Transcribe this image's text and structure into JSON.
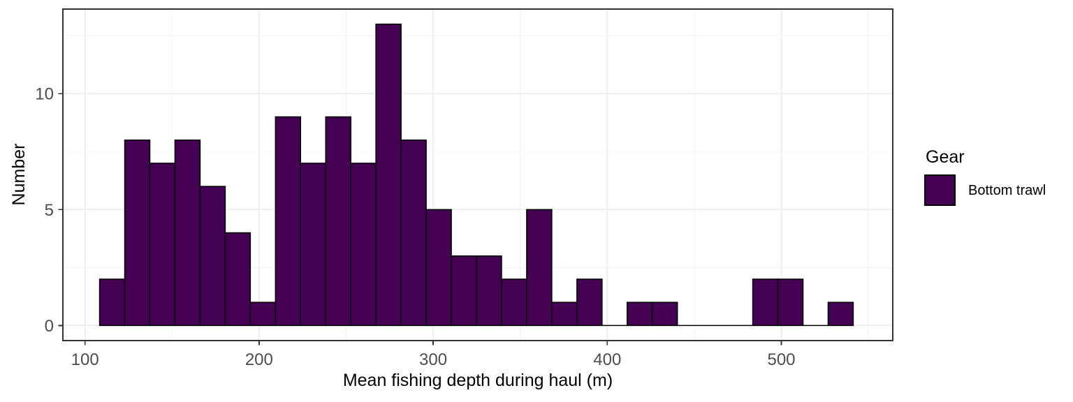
{
  "theme": {
    "background": "#FFFFFF",
    "panel_background": "#FFFFFF",
    "panel_border": "#333333",
    "grid_major": "#EBEBEB",
    "grid_minor": "#F2F2F2",
    "axis_tick_color": "#333333",
    "tick_label_color": "#4D4D4D",
    "title_color": "#000000"
  },
  "chart_data": {
    "type": "histogram",
    "title": "",
    "xlabel": "Mean fishing depth during haul (m)",
    "ylabel": "Number",
    "legend_title": "Gear",
    "series_name": "Bottom trawl",
    "bar_fill": "#440154",
    "bar_stroke": "#000000",
    "bin_start": 108.4,
    "bin_width": 14.43,
    "counts": [
      2,
      8,
      7,
      8,
      6,
      4,
      1,
      9,
      7,
      9,
      7,
      13,
      8,
      5,
      3,
      3,
      2,
      5,
      1,
      2,
      0,
      1,
      1,
      0,
      0,
      0,
      2,
      2,
      0,
      1
    ],
    "x_ticks": [
      100,
      200,
      300,
      400,
      500
    ],
    "x_minor_ticks": [
      150,
      250,
      350,
      450,
      550
    ],
    "y_ticks": [
      0,
      5,
      10
    ],
    "y_minor_ticks": [
      2.5,
      7.5,
      12.5
    ],
    "xlim": [
      87.3,
      564.0
    ],
    "ylim": [
      -0.65,
      13.65
    ],
    "grid": true,
    "legend_position": "right"
  },
  "legend": {
    "title": "Gear",
    "items": [
      {
        "label": "Bottom trawl",
        "swatch_fill": "#440154",
        "swatch_border": "#000000"
      }
    ]
  }
}
